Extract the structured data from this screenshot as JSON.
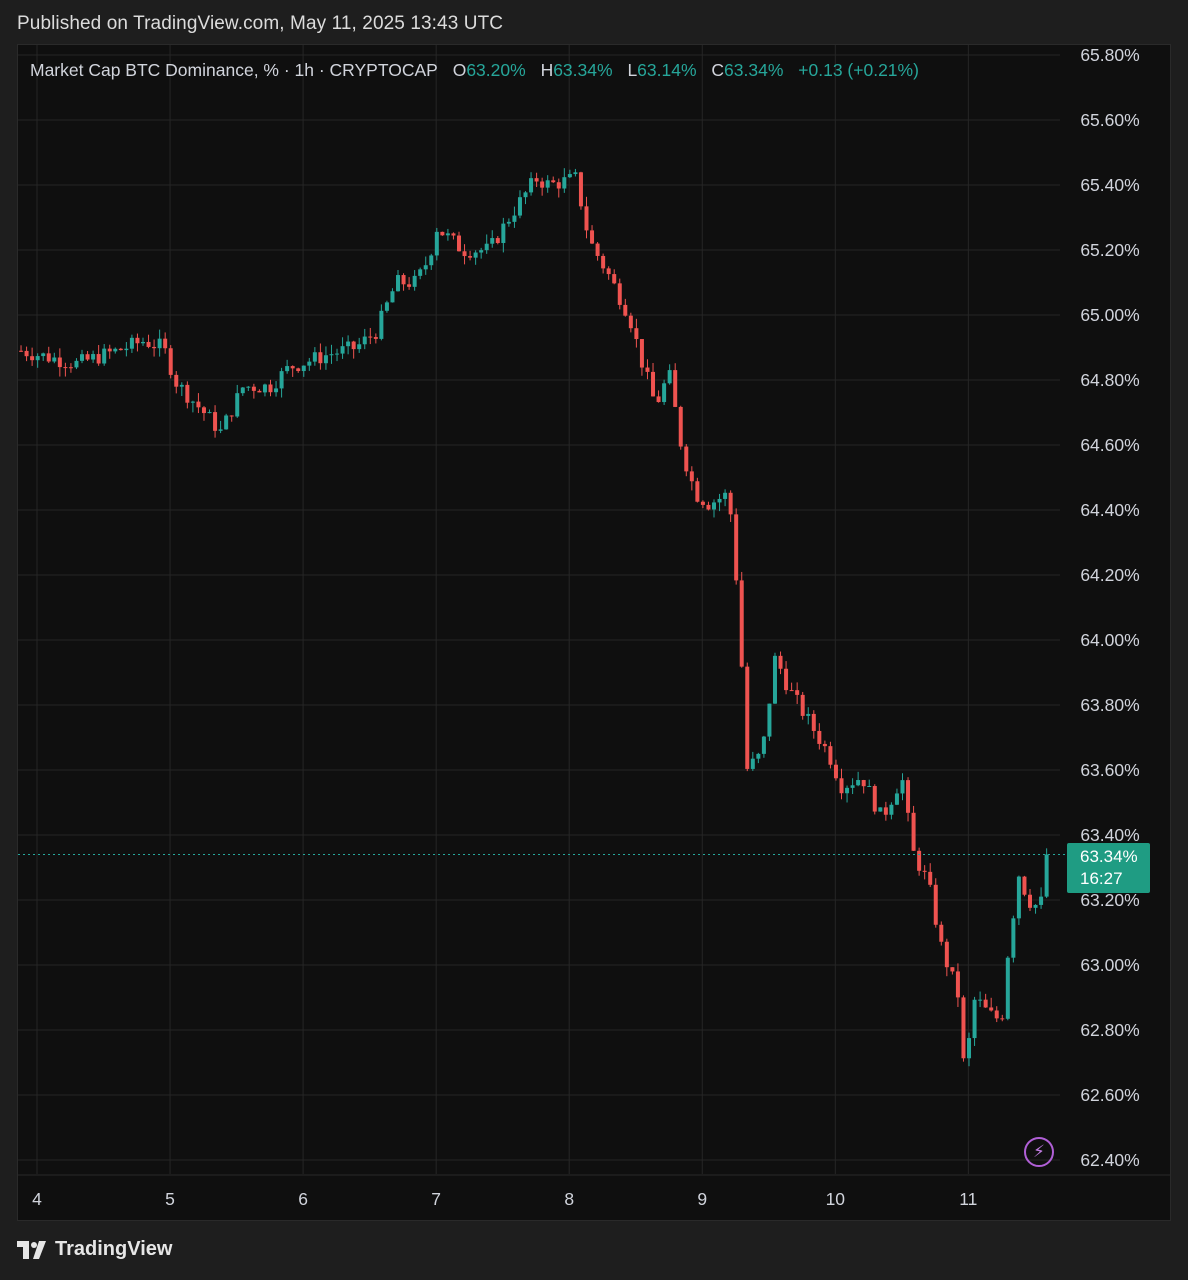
{
  "published_text": "Published on TradingView.com, May 11, 2025 13:43 UTC",
  "legend": {
    "symbol": "Market Cap BTC Dominance, % · 1h · CRYPTOCAP",
    "o_label": "O",
    "o_value": "63.20%",
    "h_label": "H",
    "h_value": "63.34%",
    "l_label": "L",
    "l_value": "63.14%",
    "c_label": "C",
    "c_value": "63.34%",
    "change": "+0.13 (+0.21%)"
  },
  "price_tag": {
    "price": "63.34%",
    "countdown": "16:27"
  },
  "brand": "TradingView",
  "colors": {
    "up": "#26a69a",
    "down": "#ef5350",
    "tag": "#1f9c83",
    "grid": "#262626"
  },
  "icons": {
    "bolt": "lightning-bolt-icon",
    "logo": "tradingview-logo-icon"
  },
  "chart_data": {
    "type": "candlestick",
    "title": "",
    "timeframe": "1h",
    "y_unit": "%",
    "ylim": [
      62.4,
      65.8
    ],
    "y_ticks": [
      65.8,
      65.6,
      65.4,
      65.2,
      65.0,
      64.8,
      64.6,
      64.4,
      64.2,
      64.0,
      63.8,
      63.6,
      63.4,
      63.2,
      63.0,
      62.8,
      62.6,
      62.4
    ],
    "y_tick_labels": [
      "65.80%",
      "65.60%",
      "65.40%",
      "65.20%",
      "65.00%",
      "64.80%",
      "64.60%",
      "64.40%",
      "64.20%",
      "64.00%",
      "63.80%",
      "63.60%",
      "63.40%",
      "63.20%",
      "63.00%",
      "62.80%",
      "62.60%",
      "62.40%"
    ],
    "x_ticks": [
      4,
      5,
      6,
      7,
      8,
      9,
      10,
      11
    ],
    "x_tick_labels": [
      "4",
      "5",
      "6",
      "7",
      "8",
      "9",
      "10",
      "11"
    ],
    "x_range_days": [
      3.87,
      11.65
    ],
    "last_price": 63.34,
    "grid": true,
    "close_path": [
      [
        3.88,
        64.89
      ],
      [
        4.3,
        64.85
      ],
      [
        4.6,
        64.89
      ],
      [
        4.8,
        64.92
      ],
      [
        4.95,
        64.9
      ],
      [
        5.05,
        64.79
      ],
      [
        5.3,
        64.68
      ],
      [
        5.38,
        64.64
      ],
      [
        5.55,
        64.78
      ],
      [
        5.75,
        64.78
      ],
      [
        5.9,
        64.84
      ],
      [
        6.2,
        64.88
      ],
      [
        6.4,
        64.9
      ],
      [
        6.55,
        64.95
      ],
      [
        6.7,
        65.1
      ],
      [
        6.85,
        65.1
      ],
      [
        6.95,
        65.18
      ],
      [
        7.0,
        65.27
      ],
      [
        7.2,
        65.2
      ],
      [
        7.4,
        65.2
      ],
      [
        7.55,
        65.3
      ],
      [
        7.75,
        65.42
      ],
      [
        7.85,
        65.4
      ],
      [
        8.05,
        65.42
      ],
      [
        8.15,
        65.23
      ],
      [
        8.3,
        65.12
      ],
      [
        8.45,
        65.0
      ],
      [
        8.55,
        64.85
      ],
      [
        8.65,
        64.72
      ],
      [
        8.75,
        64.82
      ],
      [
        8.85,
        64.58
      ],
      [
        8.95,
        64.45
      ],
      [
        9.05,
        64.42
      ],
      [
        9.2,
        64.45
      ],
      [
        9.28,
        64.08
      ],
      [
        9.33,
        63.6
      ],
      [
        9.45,
        63.65
      ],
      [
        9.55,
        63.95
      ],
      [
        9.65,
        63.85
      ],
      [
        9.8,
        63.75
      ],
      [
        9.95,
        63.65
      ],
      [
        10.05,
        63.55
      ],
      [
        10.2,
        63.58
      ],
      [
        10.35,
        63.45
      ],
      [
        10.5,
        63.58
      ],
      [
        10.58,
        63.35
      ],
      [
        10.7,
        63.25
      ],
      [
        10.8,
        63.05
      ],
      [
        10.93,
        62.9
      ],
      [
        10.97,
        62.66
      ],
      [
        11.05,
        62.9
      ],
      [
        11.15,
        62.85
      ],
      [
        11.25,
        62.83
      ],
      [
        11.3,
        63.05
      ],
      [
        11.38,
        63.28
      ],
      [
        11.45,
        63.2
      ],
      [
        11.52,
        63.18
      ],
      [
        11.56,
        63.2
      ],
      [
        11.6,
        63.34
      ]
    ]
  }
}
